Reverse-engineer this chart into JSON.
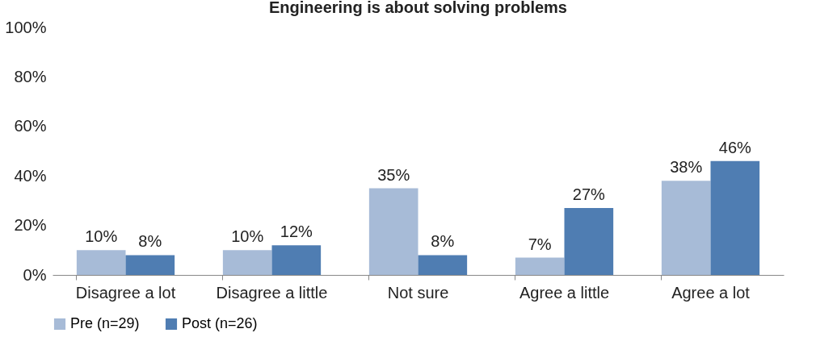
{
  "chart_data": {
    "type": "bar",
    "title": "Engineering is about solving problems",
    "categories": [
      "Disagree a lot",
      "Disagree a little",
      "Not sure",
      "Agree a little",
      "Agree a lot"
    ],
    "series": [
      {
        "name": "Pre (n=29)",
        "color": "#a7bbd7",
        "values": [
          10,
          10,
          35,
          7,
          38
        ],
        "value_labels": [
          "10%",
          "10%",
          "35%",
          "7%",
          "38%"
        ]
      },
      {
        "name": "Post (n=26)",
        "color": "#4f7db2",
        "values": [
          8,
          12,
          8,
          27,
          46
        ],
        "value_labels": [
          "8%",
          "12%",
          "8%",
          "27%",
          "46%"
        ]
      }
    ],
    "ylim": [
      0,
      100
    ],
    "yticks": [
      {
        "value": 0,
        "label": "0%"
      },
      {
        "value": 20,
        "label": "20%"
      },
      {
        "value": 40,
        "label": "40%"
      },
      {
        "value": 60,
        "label": "60%"
      },
      {
        "value": 80,
        "label": "80%"
      },
      {
        "value": 100,
        "label": "100%"
      }
    ],
    "grid": false,
    "legend": "bottom"
  }
}
